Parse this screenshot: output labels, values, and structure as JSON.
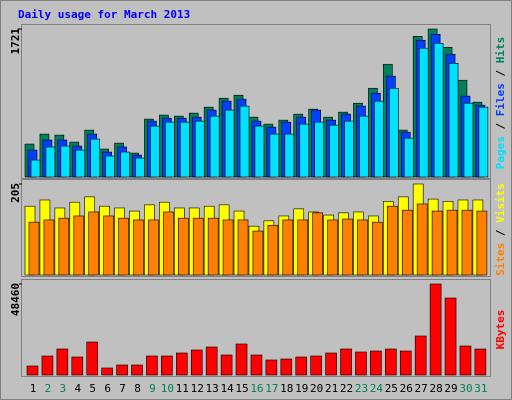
{
  "chart_data": [
    {
      "type": "bar",
      "title": "Daily usage for March 2013",
      "ylim": [
        0,
        1721
      ],
      "yticks": [
        1721
      ],
      "legend_separator": " / ",
      "series": [
        {
          "name": "Hits",
          "color": "#00805c",
          "values": [
            383,
            499,
            487,
            406,
            545,
            325,
            394,
            278,
            673,
            720,
            708,
            743,
            812,
            916,
            951,
            696,
            615,
            661,
            731,
            789,
            696,
            754,
            858,
            1032,
            1311,
            545,
            1636,
            1721,
            1508,
            1125,
            870
          ]
        },
        {
          "name": "Files",
          "color": "#0040ff",
          "values": [
            313,
            430,
            430,
            360,
            499,
            290,
            349,
            255,
            650,
            684,
            684,
            696,
            778,
            882,
            905,
            650,
            580,
            638,
            696,
            778,
            661,
            731,
            824,
            974,
            1172,
            522,
            1590,
            1659,
            1427,
            940,
            835
          ]
        },
        {
          "name": "Pages",
          "color": "#00e0ff",
          "values": [
            197,
            349,
            360,
            313,
            441,
            244,
            290,
            220,
            592,
            638,
            638,
            650,
            708,
            778,
            824,
            592,
            499,
            499,
            615,
            638,
            603,
            650,
            708,
            882,
            1032,
            452,
            1497,
            1554,
            1322,
            858,
            812
          ]
        }
      ]
    },
    {
      "type": "bar",
      "ylim": [
        0,
        205
      ],
      "yticks": [
        205
      ],
      "legend_separator": " / ",
      "series": [
        {
          "name": "Visits",
          "color": "#ffff00",
          "values": [
            155,
            169,
            151,
            164,
            176,
            155,
            151,
            144,
            158,
            164,
            151,
            151,
            155,
            158,
            144,
            110,
            122,
            133,
            149,
            142,
            135,
            140,
            142,
            133,
            166,
            176,
            205,
            171,
            166,
            169,
            169
          ]
        },
        {
          "name": "Sites",
          "color": "#ff8000",
          "values": [
            119,
            124,
            128,
            133,
            142,
            133,
            128,
            124,
            124,
            142,
            128,
            128,
            128,
            124,
            124,
            99,
            112,
            124,
            124,
            140,
            124,
            126,
            124,
            119,
            155,
            146,
            160,
            144,
            146,
            146,
            144
          ]
        }
      ]
    },
    {
      "type": "bar",
      "ylim": [
        0,
        48460
      ],
      "yticks": [
        48460
      ],
      "categories": [
        "1",
        "2",
        "3",
        "4",
        "5",
        "6",
        "7",
        "8",
        "9",
        "10",
        "11",
        "12",
        "13",
        "14",
        "15",
        "16",
        "17",
        "18",
        "19",
        "20",
        "21",
        "22",
        "23",
        "24",
        "25",
        "26",
        "27",
        "28",
        "29",
        "30",
        "31"
      ],
      "category_colors": [
        "#000000",
        "#00805c",
        "#00805c",
        "#000000",
        "#000000",
        "#000000",
        "#000000",
        "#000000",
        "#00805c",
        "#00805c",
        "#000000",
        "#000000",
        "#000000",
        "#000000",
        "#000000",
        "#00805c",
        "#00805c",
        "#000000",
        "#000000",
        "#000000",
        "#000000",
        "#000000",
        "#00805c",
        "#00805c",
        "#000000",
        "#000000",
        "#000000",
        "#000000",
        "#000000",
        "#00805c",
        "#00805c"
      ],
      "series": [
        {
          "name": "KBytes",
          "color": "#ff0000",
          "values": [
            4793,
            10118,
            13845,
            9585,
            17573,
            3728,
            5325,
            5325,
            10118,
            10118,
            11715,
            13313,
            14910,
            10650,
            16508,
            10650,
            7988,
            8520,
            9585,
            10118,
            11715,
            13845,
            12248,
            12780,
            13845,
            12780,
            20768,
            48460,
            41003,
            15443,
            13845
          ]
        }
      ]
    }
  ]
}
